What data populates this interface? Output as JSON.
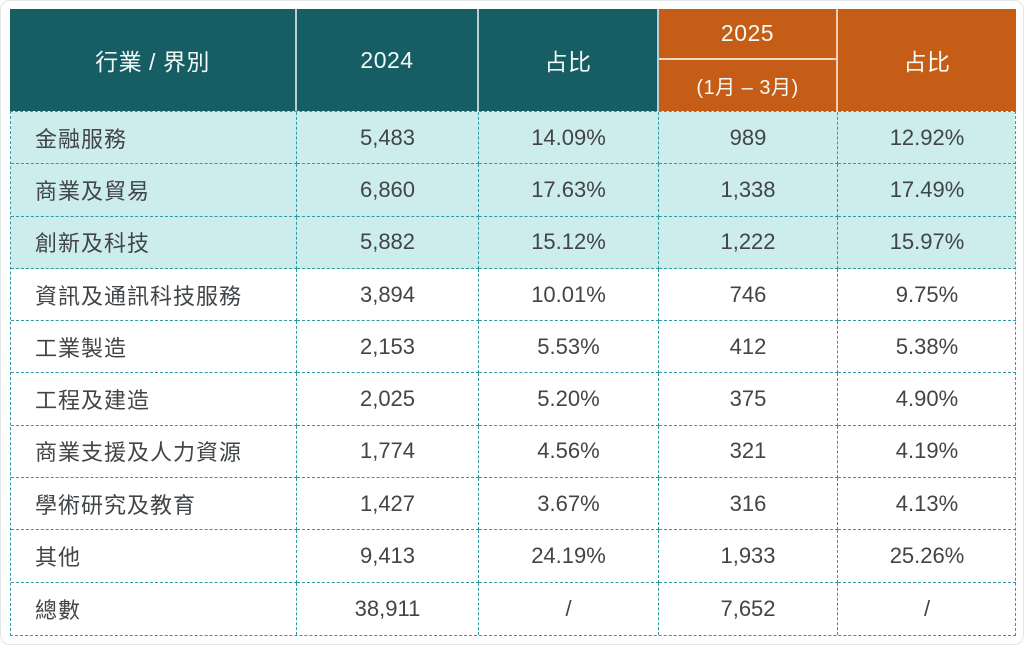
{
  "table": {
    "header": {
      "industry": "行業 / 界別",
      "y2024": "2024",
      "share2024": "占比",
      "y2025": "2025",
      "y2025_sub": "(1月 – 3月)",
      "share2025": "占比"
    },
    "rows": [
      {
        "label": "金融服務",
        "y2024": "5,483",
        "share2024": "14.09%",
        "y2025": "989",
        "share2025": "12.92%"
      },
      {
        "label": "商業及貿易",
        "y2024": "6,860",
        "share2024": "17.63%",
        "y2025": "1,338",
        "share2025": "17.49%"
      },
      {
        "label": "創新及科技",
        "y2024": "5,882",
        "share2024": "15.12%",
        "y2025": "1,222",
        "share2025": "15.97%"
      },
      {
        "label": "資訊及通訊科技服務",
        "y2024": "3,894",
        "share2024": "10.01%",
        "y2025": "746",
        "share2025": "9.75%"
      },
      {
        "label": "工業製造",
        "y2024": "2,153",
        "share2024": "5.53%",
        "y2025": "412",
        "share2025": "5.38%"
      },
      {
        "label": "工程及建造",
        "y2024": "2,025",
        "share2024": "5.20%",
        "y2025": "375",
        "share2025": "4.90%"
      },
      {
        "label": "商業支援及人力資源",
        "y2024": "1,774",
        "share2024": "4.56%",
        "y2025": "321",
        "share2025": "4.19%"
      },
      {
        "label": "學術研究及教育",
        "y2024": "1,427",
        "share2024": "3.67%",
        "y2025": "316",
        "share2025": "4.13%"
      },
      {
        "label": "其他",
        "y2024": "9,413",
        "share2024": "24.19%",
        "y2025": "1,933",
        "share2025": "25.26%"
      },
      {
        "label": "總數",
        "y2024": "38,911",
        "share2024": "/",
        "y2025": "7,652",
        "share2025": "/"
      }
    ],
    "colors": {
      "header_teal": "#175e64",
      "header_orange": "#c55d17",
      "row_highlight": "#cdecec",
      "grid_border": "#2d9aa4",
      "body_text": "#414548",
      "header_text": "#f3faf8"
    }
  },
  "chart_data": {
    "type": "table",
    "title": "",
    "columns": [
      "行業 / 界別",
      "2024",
      "占比",
      "2025 (1月 – 3月)",
      "占比"
    ],
    "rows": [
      [
        "金融服務",
        5483,
        "14.09%",
        989,
        "12.92%"
      ],
      [
        "商業及貿易",
        6860,
        "17.63%",
        1338,
        "17.49%"
      ],
      [
        "創新及科技",
        5882,
        "15.12%",
        1222,
        "15.97%"
      ],
      [
        "資訊及通訊科技服務",
        3894,
        "10.01%",
        746,
        "9.75%"
      ],
      [
        "工業製造",
        2153,
        "5.53%",
        412,
        "5.38%"
      ],
      [
        "工程及建造",
        2025,
        "5.20%",
        375,
        "4.90%"
      ],
      [
        "商業支援及人力資源",
        1774,
        "4.56%",
        321,
        "4.19%"
      ],
      [
        "學術研究及教育",
        1427,
        "3.67%",
        316,
        "4.13%"
      ],
      [
        "其他",
        9413,
        "24.19%",
        1933,
        "25.26%"
      ],
      [
        "總數",
        38911,
        "/",
        7652,
        "/"
      ]
    ]
  }
}
